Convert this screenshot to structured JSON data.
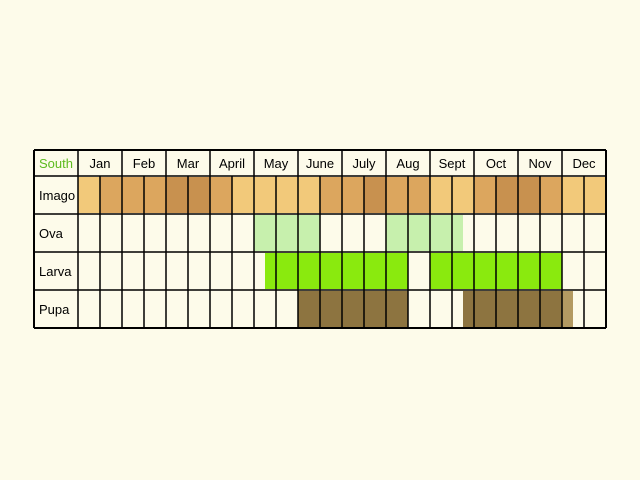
{
  "region_label": "South",
  "region_label_color": "#5dbb1f",
  "months": [
    "Jan",
    "Feb",
    "Mar",
    "April",
    "May",
    "June",
    "July",
    "Aug",
    "Sept",
    "Oct",
    "Nov",
    "Dec"
  ],
  "stages": [
    "Imago",
    "Ova",
    "Larva",
    "Pupa"
  ],
  "colors": {
    "background": "#fdfbea",
    "cell": "#fdfbea",
    "grid": "#000000",
    "imago_light": "#f2c97a",
    "imago_mid": "#dca65e",
    "imago_dark": "#c8914f",
    "ova": "#c7f0ad",
    "larva": "#8aea0e",
    "pupa": "#8d7440",
    "pupa_fade": "#b39a62"
  },
  "chart_data": {
    "type": "table",
    "description_units": "quarter-month segments, 0 = start of Jan, 48 = end of Dec",
    "stages": [
      {
        "name": "Imago",
        "bars": [
          {
            "start": 0,
            "end": 2,
            "tone": "imago_light"
          },
          {
            "start": 2,
            "end": 4,
            "tone": "imago_mid"
          },
          {
            "start": 4,
            "end": 8,
            "tone": "imago_mid"
          },
          {
            "start": 8,
            "end": 12,
            "tone": "imago_dark"
          },
          {
            "start": 12,
            "end": 14,
            "tone": "imago_mid"
          },
          {
            "start": 14,
            "end": 15,
            "tone": "imago_light"
          },
          {
            "start": 15,
            "end": 20,
            "tone": "imago_light"
          },
          {
            "start": 20,
            "end": 22,
            "tone": "imago_light"
          },
          {
            "start": 22,
            "end": 24,
            "tone": "imago_mid"
          },
          {
            "start": 24,
            "end": 26,
            "tone": "imago_mid"
          },
          {
            "start": 26,
            "end": 28,
            "tone": "imago_dark"
          },
          {
            "start": 28,
            "end": 30,
            "tone": "imago_mid"
          },
          {
            "start": 30,
            "end": 32,
            "tone": "imago_mid"
          },
          {
            "start": 32,
            "end": 36,
            "tone": "imago_light"
          },
          {
            "start": 36,
            "end": 38,
            "tone": "imago_mid"
          },
          {
            "start": 38,
            "end": 40,
            "tone": "imago_dark"
          },
          {
            "start": 40,
            "end": 42,
            "tone": "imago_dark"
          },
          {
            "start": 42,
            "end": 44,
            "tone": "imago_mid"
          },
          {
            "start": 44,
            "end": 48,
            "tone": "imago_light"
          }
        ]
      },
      {
        "name": "Ova",
        "bars": [
          {
            "start": 16,
            "end": 22,
            "tone": "ova"
          },
          {
            "start": 28,
            "end": 35,
            "tone": "ova"
          }
        ]
      },
      {
        "name": "Larva",
        "bars": [
          {
            "start": 17,
            "end": 30,
            "tone": "larva"
          },
          {
            "start": 32,
            "end": 44,
            "tone": "larva"
          }
        ]
      },
      {
        "name": "Pupa",
        "bars": [
          {
            "start": 20,
            "end": 30,
            "tone": "pupa"
          },
          {
            "start": 35,
            "end": 44,
            "tone": "pupa"
          },
          {
            "start": 44,
            "end": 45,
            "tone": "pupa_fade"
          }
        ]
      }
    ]
  }
}
